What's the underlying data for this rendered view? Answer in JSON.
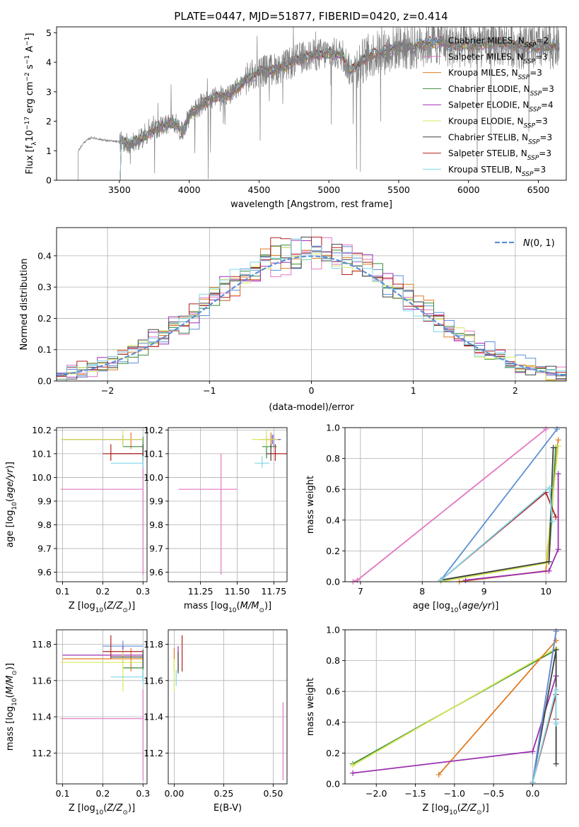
{
  "figure_title": "PLATE=0447, MJD=51877, FIBERID=0420, z=0.414",
  "colors": {
    "Chabrier MILES": "#5b8fd6",
    "Salpeter MILES": "#e377c2",
    "Kroupa MILES": "#e07b22",
    "Chabrier ELODIE": "#3a8a3a",
    "Salpeter ELODIE": "#9b30b0",
    "Kroupa ELODIE": "#d6e85a",
    "Chabrier STELIB": "#404040",
    "Salpeter STELIB": "#b22222",
    "Kroupa STELIB": "#7fd8e8",
    "data": "#808080",
    "gauss": "#5b8fd6"
  },
  "chart_data": [
    {
      "id": "spectrum",
      "type": "line",
      "title": "PLATE=0447, MJD=51877, FIBERID=0420, z=0.414",
      "xlabel": "wavelength [Angstrom, rest frame]",
      "ylabel": "Flux [f_λ 10^-17 erg cm^-2 s^-1 A^-1]",
      "xlim": [
        3050,
        6700
      ],
      "ylim": [
        0,
        5.2
      ],
      "xticks": [
        3500,
        4000,
        4500,
        5000,
        5500,
        6000,
        6500
      ],
      "yticks": [
        0,
        1,
        2,
        3,
        4,
        5
      ],
      "grid": false,
      "legend_position": "top-right",
      "data_start": 3200,
      "model_start": 3500,
      "continuum": [
        [
          3200,
          0.0
        ],
        [
          3205,
          1.0
        ],
        [
          3250,
          1.3
        ],
        [
          3300,
          1.45
        ],
        [
          3400,
          1.35
        ],
        [
          3500,
          1.3
        ],
        [
          3600,
          1.25
        ],
        [
          3700,
          1.55
        ],
        [
          3800,
          1.85
        ],
        [
          3900,
          1.95
        ],
        [
          3950,
          1.6
        ],
        [
          4000,
          2.2
        ],
        [
          4100,
          2.6
        ],
        [
          4200,
          2.85
        ],
        [
          4300,
          2.9
        ],
        [
          4400,
          3.4
        ],
        [
          4500,
          3.7
        ],
        [
          4600,
          3.75
        ],
        [
          4700,
          3.9
        ],
        [
          4800,
          4.15
        ],
        [
          4900,
          4.25
        ],
        [
          5000,
          4.3
        ],
        [
          5100,
          4.25
        ],
        [
          5150,
          3.7
        ],
        [
          5200,
          3.9
        ],
        [
          5300,
          4.25
        ],
        [
          5400,
          4.35
        ],
        [
          5500,
          4.55
        ],
        [
          5600,
          4.5
        ],
        [
          5700,
          4.65
        ],
        [
          5800,
          4.7
        ],
        [
          5900,
          4.55
        ],
        [
          6000,
          4.55
        ],
        [
          6100,
          4.6
        ],
        [
          6200,
          4.65
        ],
        [
          6300,
          4.6
        ],
        [
          6400,
          4.55
        ],
        [
          6500,
          4.5
        ],
        [
          6600,
          4.55
        ]
      ],
      "legend": [
        "Chabrier MILES, N_SSP=2",
        "Salpeter MILES, N_SSP=3",
        "Kroupa MILES, N_SSP=3",
        "Chabrier ELODIE, N_SSP=3",
        "Salpeter ELODIE, N_SSP=4",
        "Kroupa ELODIE, N_SSP=3",
        "Chabrier STELIB, N_SSP=3",
        "Salpeter STELIB, N_SSP=3",
        "Kroupa STELIB, N_SSP=3"
      ]
    },
    {
      "id": "residuals",
      "type": "histogram",
      "xlabel": "(data-model)/error",
      "ylabel": "Normed distribution",
      "xlim": [
        -2.5,
        2.5
      ],
      "ylim": [
        0,
        0.49
      ],
      "xticks": [
        -2,
        -1,
        0,
        1,
        2
      ],
      "yticks": [
        0.0,
        0.1,
        0.2,
        0.3,
        0.4
      ],
      "grid": true,
      "legend_position": "top-right",
      "legend": [
        "N(0,1)"
      ],
      "gauss": {
        "mean": 0,
        "sigma": 1
      }
    },
    {
      "id": "age_vs_Z",
      "type": "errorbar",
      "xlabel": "Z [log10(Z/Z_sun)]",
      "ylabel": "age [log10(age/yr)]",
      "xlim": [
        0.085,
        0.31
      ],
      "ylim": [
        9.56,
        10.21
      ],
      "xticks": [
        0.1,
        0.2,
        0.3
      ],
      "yticks": [
        9.6,
        9.7,
        9.8,
        9.9,
        10.0,
        10.1,
        10.2
      ],
      "grid": true,
      "points": [
        {
          "model": "Salpeter MILES",
          "x": 0.3,
          "xlo": 0.095,
          "xhi": 0.3,
          "y": 9.95,
          "ylo": 9.59,
          "yhi": 10.1
        },
        {
          "model": "Chabrier MILES",
          "x": 0.25,
          "xlo": 0.2,
          "xhi": 0.3,
          "y": 10.16,
          "ylo": 10.13,
          "yhi": 10.18
        },
        {
          "model": "Kroupa MILES",
          "x": 0.27,
          "xlo": 0.1,
          "xhi": 0.3,
          "y": 10.16,
          "ylo": 10.12,
          "yhi": 10.19
        },
        {
          "model": "Chabrier ELODIE",
          "x": 0.3,
          "xlo": 0.25,
          "xhi": 0.3,
          "y": 10.13,
          "ylo": 10.08,
          "yhi": 10.17
        },
        {
          "model": "Salpeter ELODIE",
          "x": 0.25,
          "xlo": 0.1,
          "xhi": 0.3,
          "y": 10.16,
          "ylo": 10.14,
          "yhi": 10.18
        },
        {
          "model": "Kroupa ELODIE",
          "x": 0.25,
          "xlo": 0.095,
          "xhi": 0.3,
          "y": 10.16,
          "ylo": 10.13,
          "yhi": 10.2
        },
        {
          "model": "Chabrier STELIB",
          "x": 0.3,
          "xlo": 0.22,
          "xhi": 0.3,
          "y": 10.1,
          "ylo": 10.07,
          "yhi": 10.14
        },
        {
          "model": "Salpeter STELIB",
          "x": 0.22,
          "xlo": 0.2,
          "xhi": 0.3,
          "y": 10.1,
          "ylo": 10.07,
          "yhi": 10.14
        },
        {
          "model": "Kroupa STELIB",
          "x": 0.3,
          "xlo": 0.22,
          "xhi": 0.3,
          "y": 10.06,
          "ylo": 10.04,
          "yhi": 10.09
        }
      ]
    },
    {
      "id": "age_vs_mass",
      "type": "errorbar",
      "xlabel": "mass [log10(M/M_sun)]",
      "ylabel": "",
      "xlim": [
        11.03,
        11.84
      ],
      "ylim": [
        9.56,
        10.21
      ],
      "xticks": [
        11.25,
        11.5,
        11.75
      ],
      "xticklabels": [
        "11.25",
        "11.50",
        "11.75"
      ],
      "yticks": [
        9.6,
        9.7,
        9.8,
        9.9,
        10.0,
        10.1,
        10.2
      ],
      "grid": true,
      "points": [
        {
          "model": "Salpeter MILES",
          "x": 11.39,
          "xlo": 11.1,
          "xhi": 11.5,
          "y": 9.95,
          "ylo": 9.59,
          "yhi": 10.1
        },
        {
          "model": "Chabrier MILES",
          "x": 11.75,
          "xlo": 11.72,
          "xhi": 11.8,
          "y": 10.16,
          "ylo": 10.13,
          "yhi": 10.18
        },
        {
          "model": "Kroupa MILES",
          "x": 11.73,
          "xlo": 11.66,
          "xhi": 11.78,
          "y": 10.16,
          "ylo": 10.12,
          "yhi": 10.19
        },
        {
          "model": "Chabrier ELODIE",
          "x": 11.7,
          "xlo": 11.67,
          "xhi": 11.77,
          "y": 10.13,
          "ylo": 10.08,
          "yhi": 10.17
        },
        {
          "model": "Salpeter ELODIE",
          "x": 11.74,
          "xlo": 11.7,
          "xhi": 11.79,
          "y": 10.16,
          "ylo": 10.14,
          "yhi": 10.18
        },
        {
          "model": "Kroupa ELODIE",
          "x": 11.7,
          "xlo": 11.6,
          "xhi": 11.78,
          "y": 10.16,
          "ylo": 10.13,
          "yhi": 10.2
        },
        {
          "model": "Chabrier STELIB",
          "x": 11.73,
          "xlo": 11.7,
          "xhi": 11.77,
          "y": 10.1,
          "ylo": 10.07,
          "yhi": 10.14
        },
        {
          "model": "Salpeter STELIB",
          "x": 11.76,
          "xlo": 11.72,
          "xhi": 11.84,
          "y": 10.1,
          "ylo": 10.07,
          "yhi": 10.14
        },
        {
          "model": "Kroupa STELIB",
          "x": 11.67,
          "xlo": 11.62,
          "xhi": 11.72,
          "y": 10.06,
          "ylo": 10.04,
          "yhi": 10.09
        }
      ]
    },
    {
      "id": "weight_vs_age",
      "type": "line",
      "xlabel": "age [log10(age/yr)]",
      "ylabel": "mass weight",
      "xlim": [
        6.75,
        10.33
      ],
      "ylim": [
        0,
        1
      ],
      "xticks": [
        7,
        8,
        9,
        10
      ],
      "yticks": [
        0.0,
        0.2,
        0.4,
        0.6,
        0.8,
        1.0
      ],
      "grid": true,
      "series": [
        {
          "model": "Salpeter MILES",
          "points": [
            [
              6.88,
              0.0
            ],
            [
              6.95,
              0.01
            ],
            [
              10.0,
              0.99
            ]
          ]
        },
        {
          "model": "Chabrier MILES",
          "points": [
            [
              8.3,
              0.01
            ],
            [
              10.18,
              0.99
            ]
          ]
        },
        {
          "model": "Kroupa MILES",
          "points": [
            [
              8.6,
              0.0
            ],
            [
              10.0,
              0.07
            ],
            [
              10.2,
              0.92
            ]
          ]
        },
        {
          "model": "Chabrier ELODIE",
          "points": [
            [
              8.3,
              0.01
            ],
            [
              10.05,
              0.13
            ],
            [
              10.16,
              0.87
            ]
          ]
        },
        {
          "model": "Salpeter ELODIE",
          "points": [
            [
              8.7,
              0.01
            ],
            [
              10.05,
              0.07
            ],
            [
              10.2,
              0.21
            ],
            [
              10.2,
              0.7
            ]
          ]
        },
        {
          "model": "Kroupa ELODIE",
          "points": [
            [
              8.3,
              0.0
            ],
            [
              10.0,
              0.12
            ],
            [
              10.2,
              0.88
            ]
          ]
        },
        {
          "model": "Chabrier STELIB",
          "points": [
            [
              8.3,
              0.01
            ],
            [
              10.05,
              0.13
            ],
            [
              10.12,
              0.87
            ]
          ]
        },
        {
          "model": "Salpeter STELIB",
          "points": [
            [
              8.3,
              0.01
            ],
            [
              10.0,
              0.58
            ],
            [
              10.16,
              0.42
            ]
          ]
        },
        {
          "model": "Kroupa STELIB",
          "points": [
            [
              8.3,
              0.01
            ],
            [
              10.06,
              0.61
            ],
            [
              10.1,
              0.39
            ]
          ]
        }
      ]
    },
    {
      "id": "mass_vs_Z",
      "type": "errorbar",
      "xlabel": "Z [log10(Z/Z_sun)]",
      "ylabel": "mass [log10(M/M_sun)]",
      "xlim": [
        0.085,
        0.31
      ],
      "ylim": [
        11.03,
        11.88
      ],
      "xticks": [
        0.1,
        0.2,
        0.3
      ],
      "yticks": [
        11.2,
        11.4,
        11.6,
        11.8
      ],
      "grid": true,
      "points": [
        {
          "model": "Salpeter MILES",
          "x": 0.3,
          "xlo": 0.095,
          "xhi": 0.3,
          "y": 11.39,
          "ylo": 11.05,
          "yhi": 11.55
        },
        {
          "model": "Chabrier MILES",
          "x": 0.25,
          "xlo": 0.2,
          "xhi": 0.3,
          "y": 11.79,
          "ylo": 11.76,
          "yhi": 11.82
        },
        {
          "model": "Kroupa MILES",
          "x": 0.27,
          "xlo": 0.1,
          "xhi": 0.3,
          "y": 11.72,
          "ylo": 11.65,
          "yhi": 11.78
        },
        {
          "model": "Chabrier ELODIE",
          "x": 0.3,
          "xlo": 0.25,
          "xhi": 0.3,
          "y": 11.67,
          "ylo": 11.6,
          "yhi": 11.75
        },
        {
          "model": "Salpeter ELODIE",
          "x": 0.25,
          "xlo": 0.1,
          "xhi": 0.3,
          "y": 11.74,
          "ylo": 11.7,
          "yhi": 11.79
        },
        {
          "model": "Kroupa ELODIE",
          "x": 0.25,
          "xlo": 0.095,
          "xhi": 0.3,
          "y": 11.7,
          "ylo": 11.54,
          "yhi": 11.77
        },
        {
          "model": "Chabrier STELIB",
          "x": 0.3,
          "xlo": 0.22,
          "xhi": 0.3,
          "y": 11.73,
          "ylo": 11.67,
          "yhi": 11.77
        },
        {
          "model": "Salpeter STELIB",
          "x": 0.22,
          "xlo": 0.2,
          "xhi": 0.3,
          "y": 11.76,
          "ylo": 11.72,
          "yhi": 11.85
        },
        {
          "model": "Kroupa STELIB",
          "x": 0.3,
          "xlo": 0.22,
          "xhi": 0.3,
          "y": 11.62,
          "ylo": 11.58,
          "yhi": 11.66
        }
      ]
    },
    {
      "id": "mass_vs_ebv",
      "type": "errorbar",
      "xlabel": "E(B-V)",
      "ylabel": "",
      "xlim": [
        -0.03,
        0.57
      ],
      "ylim": [
        11.03,
        11.88
      ],
      "xticks": [
        0.0,
        0.25,
        0.5
      ],
      "xticklabels": [
        "0.00",
        "0.25",
        "0.50"
      ],
      "yticks": [
        11.2,
        11.4,
        11.6,
        11.8
      ],
      "grid": true,
      "points": [
        {
          "model": "Salpeter MILES",
          "x": 0.55,
          "xlo": 0.55,
          "xhi": 0.55,
          "y": 11.3,
          "ylo": 11.05,
          "yhi": 11.48
        },
        {
          "model": "Kroupa MILES",
          "x": 0.0,
          "xlo": 0.0,
          "xhi": 0.0,
          "y": 11.72,
          "ylo": 11.65,
          "yhi": 11.78
        },
        {
          "model": "Kroupa ELODIE",
          "x": 0.0,
          "xlo": 0.0,
          "xhi": 0.0,
          "y": 11.65,
          "ylo": 11.54,
          "yhi": 11.72
        },
        {
          "model": "Salpeter ELODIE",
          "x": 0.02,
          "xlo": 0.02,
          "xhi": 0.02,
          "y": 11.72,
          "ylo": 11.65,
          "yhi": 11.79
        },
        {
          "model": "Salpeter STELIB",
          "x": 0.04,
          "xlo": 0.04,
          "xhi": 0.04,
          "y": 11.76,
          "ylo": 11.65,
          "yhi": 11.85
        },
        {
          "model": "Kroupa STELIB",
          "x": 0.01,
          "xlo": 0.01,
          "xhi": 0.01,
          "y": 11.62,
          "ylo": 11.57,
          "yhi": 11.66
        },
        {
          "model": "Chabrier STELIB",
          "x": 0.02,
          "xlo": 0.02,
          "xhi": 0.02,
          "y": 11.7,
          "ylo": 11.64,
          "yhi": 11.76
        }
      ]
    },
    {
      "id": "weight_vs_Z",
      "type": "line",
      "xlabel": "Z [log10(Z/Z_sun)]",
      "ylabel": "mass weight",
      "xlim": [
        -2.4,
        0.43
      ],
      "ylim": [
        0,
        1
      ],
      "xticks": [
        -2.0,
        -1.5,
        -1.0,
        -0.5,
        0.0
      ],
      "xticklabels": [
        "−2.0",
        "−1.5",
        "−1.0",
        "−0.5",
        "0.0"
      ],
      "yticks": [
        0.0,
        0.2,
        0.4,
        0.6,
        0.8,
        1.0
      ],
      "grid": true,
      "series": [
        {
          "model": "Chabrier ELODIE",
          "points": [
            [
              -2.3,
              0.13
            ],
            [
              0.3,
              0.87
            ]
          ]
        },
        {
          "model": "Kroupa ELODIE",
          "points": [
            [
              -2.3,
              0.12
            ],
            [
              0.3,
              0.88
            ]
          ]
        },
        {
          "model": "Kroupa MILES",
          "points": [
            [
              -1.2,
              0.06
            ],
            [
              0.3,
              0.93
            ]
          ]
        },
        {
          "model": "Salpeter ELODIE",
          "points": [
            [
              -2.3,
              0.07
            ],
            [
              0.0,
              0.21
            ],
            [
              0.3,
              0.7
            ]
          ]
        },
        {
          "model": "Chabrier STELIB",
          "points": [
            [
              0.0,
              0.01
            ],
            [
              0.3,
              0.87
            ],
            [
              0.3,
              0.13
            ]
          ]
        },
        {
          "model": "Salpeter MILES",
          "points": [
            [
              0.0,
              0.01
            ],
            [
              0.3,
              0.99
            ]
          ]
        },
        {
          "model": "Chabrier MILES",
          "points": [
            [
              0.0,
              0.01
            ],
            [
              0.3,
              0.99
            ]
          ]
        },
        {
          "model": "Salpeter STELIB",
          "points": [
            [
              0.0,
              0.01
            ],
            [
              0.3,
              0.58
            ],
            [
              0.3,
              0.42
            ]
          ]
        },
        {
          "model": "Kroupa STELIB",
          "points": [
            [
              0.0,
              0.01
            ],
            [
              0.3,
              0.61
            ],
            [
              0.3,
              0.39
            ]
          ]
        }
      ]
    }
  ]
}
